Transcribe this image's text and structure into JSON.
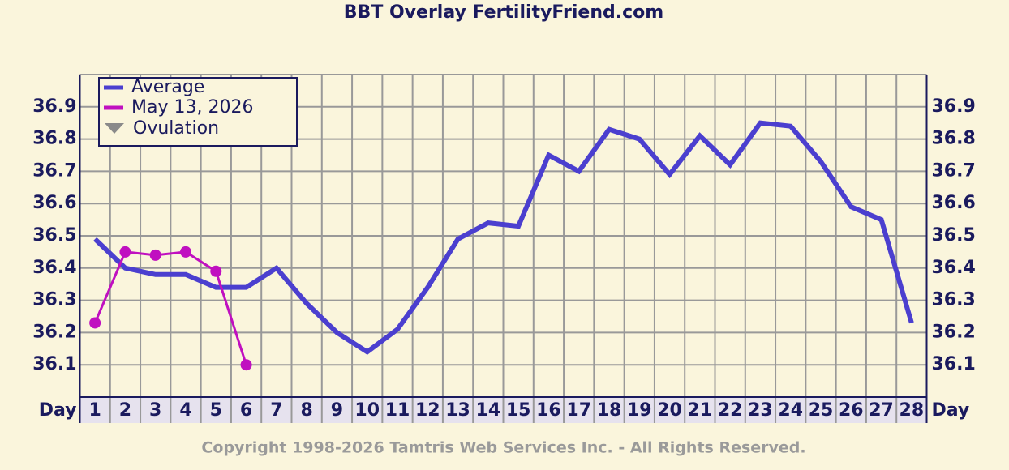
{
  "chart_data": {
    "type": "line",
    "title": "BBT Overlay FertilityFriend.com",
    "xlabel": "Day",
    "categories": [
      "1",
      "2",
      "3",
      "4",
      "5",
      "6",
      "7",
      "8",
      "9",
      "10",
      "11",
      "12",
      "13",
      "14",
      "15",
      "16",
      "17",
      "18",
      "19",
      "20",
      "21",
      "22",
      "23",
      "24",
      "25",
      "26",
      "27",
      "28"
    ],
    "series": [
      {
        "name": "Average",
        "color": "#4b3fcf",
        "markers": false,
        "values": [
          36.49,
          36.4,
          36.38,
          36.38,
          36.34,
          36.34,
          36.4,
          36.29,
          36.2,
          36.14,
          36.21,
          36.34,
          36.49,
          36.54,
          36.53,
          36.75,
          36.7,
          36.83,
          36.8,
          36.69,
          36.81,
          36.72,
          36.85,
          36.84,
          36.73,
          36.59,
          36.55,
          36.23
        ]
      },
      {
        "name": "May 13, 2026",
        "color": "#c010c0",
        "markers": true,
        "values": [
          36.23,
          36.45,
          36.44,
          36.45,
          36.39,
          36.1,
          null,
          null,
          null,
          null,
          null,
          null,
          null,
          null,
          null,
          null,
          null,
          null,
          null,
          null,
          null,
          null,
          null,
          null,
          null,
          null,
          null,
          null
        ]
      }
    ],
    "ovulation": {
      "name": "Ovulation",
      "color": "#8a8a8a"
    },
    "ylim": [
      36.0,
      37.0
    ],
    "yticks": [
      36.1,
      36.2,
      36.3,
      36.4,
      36.5,
      36.6,
      36.7,
      36.8,
      36.9
    ],
    "y2ticks": [
      36.1,
      36.2,
      36.3,
      36.4,
      36.5,
      36.6,
      36.7,
      36.8,
      36.9
    ],
    "grid": true,
    "legend": "upper left",
    "footer": "Copyright 1998-2026 Tamtris Web Services Inc. - All Rights Reserved."
  }
}
